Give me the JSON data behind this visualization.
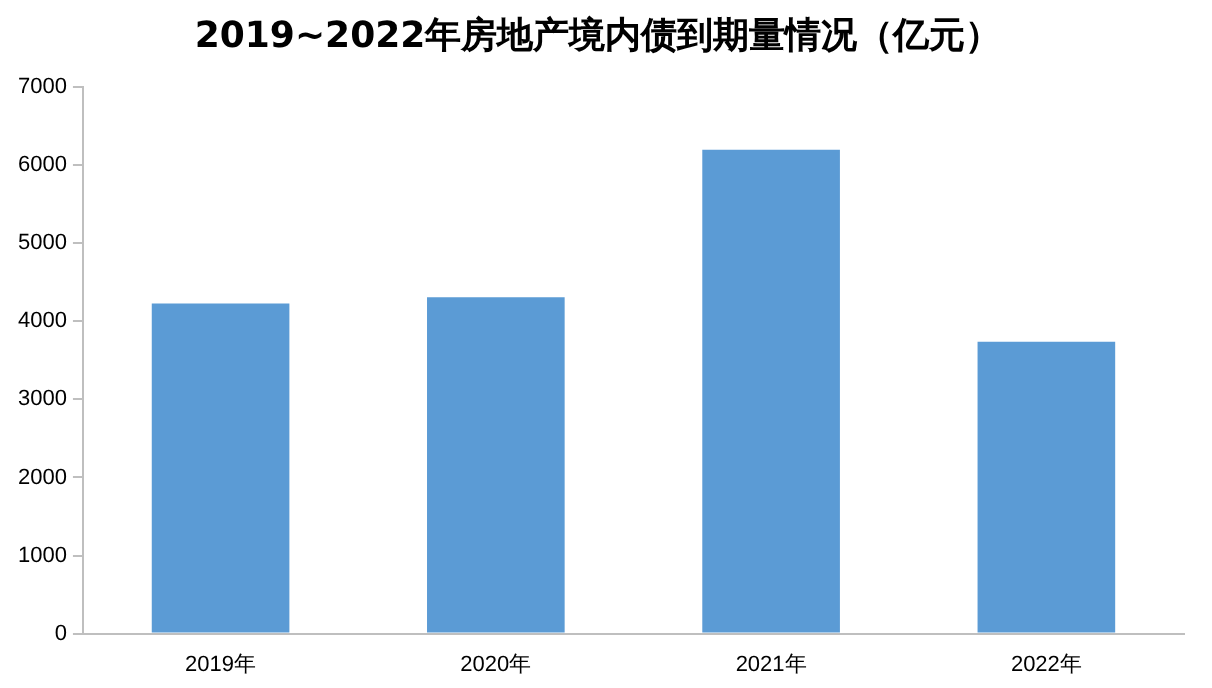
{
  "chart_data": {
    "type": "bar",
    "title": "2019~2022年房地产境内债到期量情况（亿元）",
    "categories": [
      "2019年",
      "2020年",
      "2021年",
      "2022年"
    ],
    "values": [
      4230,
      4310,
      6200,
      3740
    ],
    "color": "#5b9bd5",
    "ylim": [
      0,
      7000
    ],
    "yticks": [
      0,
      1000,
      2000,
      3000,
      4000,
      5000,
      6000,
      7000
    ],
    "grid": false,
    "legend": false
  }
}
